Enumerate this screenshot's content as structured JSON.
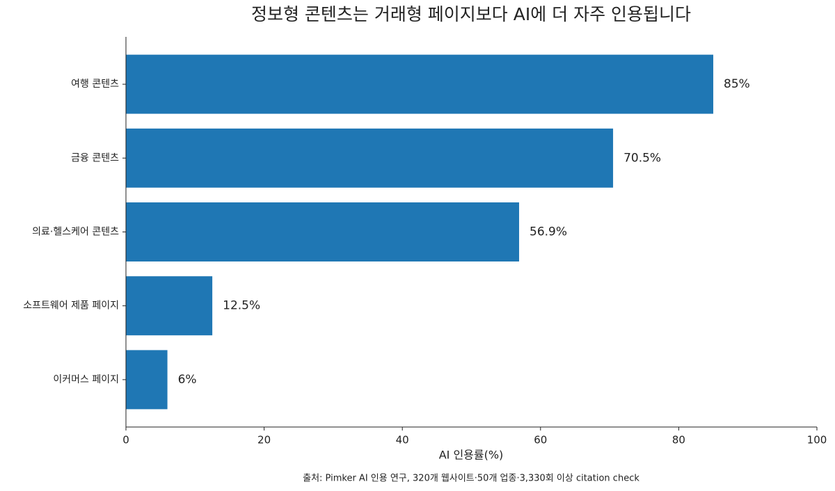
{
  "chart_data": {
    "type": "bar",
    "orientation": "horizontal",
    "title": "정보형 콘텐츠는 거래형 페이지보다 AI에 더 자주 인용됩니다",
    "categories": [
      "여행 콘텐츠",
      "금융 콘텐츠",
      "의료·헬스케어 콘텐츠",
      "소프트웨어 제품 페이지",
      "이커머스 페이지"
    ],
    "values": [
      85,
      70.5,
      56.9,
      12.5,
      6
    ],
    "value_labels": [
      "85%",
      "70.5%",
      "56.9%",
      "12.5%",
      "6%"
    ],
    "color": "#1f77b4",
    "xlabel": "AI 인용률(%)",
    "xlim": [
      0,
      100
    ],
    "xticks": [
      0,
      20,
      40,
      60,
      80,
      100
    ],
    "grid": false,
    "source": "출처: Pimker AI 인용 연구, 320개 웹사이트·50개 업종·3,330회 이상 citation check"
  }
}
